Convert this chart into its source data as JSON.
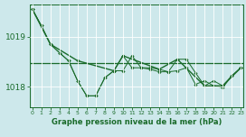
{
  "background_color": "#cde8eb",
  "grid_color": "#ffffff",
  "line_color": "#1a6b2a",
  "title": "Graphe pression niveau de la mer (hPa)",
  "ylabel_ticks": [
    1018,
    1019
  ],
  "xlim": [
    -0.3,
    23.3
  ],
  "ylim": [
    1017.6,
    1019.65
  ],
  "x": [
    0,
    1,
    2,
    3,
    4,
    5,
    6,
    7,
    8,
    9,
    10,
    11,
    12,
    13,
    14,
    15,
    16,
    17,
    18,
    19,
    20,
    21,
    22,
    23
  ],
  "series1": [
    1019.55,
    1019.22,
    1018.85,
    1018.68,
    1018.52,
    1018.12,
    1017.82,
    1017.82,
    1018.18,
    1018.32,
    1018.32,
    1018.62,
    1018.38,
    1018.38,
    1018.35,
    1018.3,
    1018.32,
    1018.38,
    1018.05,
    1018.12,
    1018.02,
    1017.98,
    1018.22,
    1018.38
  ],
  "series2": [
    1019.55,
    1019.22,
    1018.85,
    1018.68,
    1018.52,
    1018.12,
    1017.82,
    1017.82,
    1018.18,
    1018.32,
    1018.62,
    1018.38,
    1018.38,
    1018.35,
    1018.3,
    1018.3,
    1018.55,
    1018.55,
    1018.28,
    1018.02,
    1018.12,
    1018.02,
    1018.22,
    1018.38
  ],
  "series3_x": [
    0,
    2,
    5,
    9,
    10,
    14,
    16,
    19,
    21,
    23
  ],
  "series3": [
    1019.55,
    1018.85,
    1018.52,
    1018.32,
    1018.62,
    1018.35,
    1018.55,
    1018.02,
    1018.02,
    1018.38
  ],
  "hline_y": 1018.48,
  "xtick_labels": [
    "0",
    "1",
    "2",
    "3",
    "4",
    "5",
    "6",
    "7",
    "8",
    "9",
    "10",
    "11",
    "12",
    "13",
    "14",
    "15",
    "16",
    "17",
    "18",
    "19",
    "20",
    "21",
    "22",
    "23"
  ]
}
